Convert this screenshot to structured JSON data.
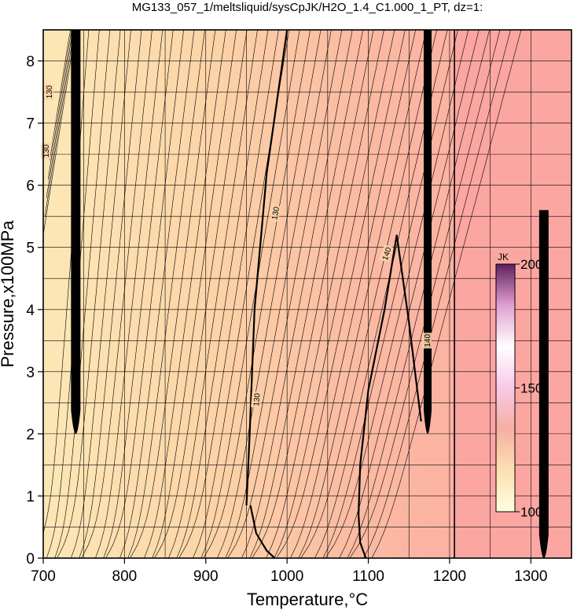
{
  "chart_data": {
    "type": "heatmap",
    "title": "MG133_057_1/meltsliquid/sysCpJK/H2O_1.4_C1.000_1_PT, dz=1:",
    "xlabel": "Temperature,°C",
    "ylabel": "Pressure,x100MPa",
    "xlim": [
      700,
      1350
    ],
    "ylim": [
      0,
      8.5
    ],
    "x_ticks": [
      700,
      800,
      900,
      1000,
      1100,
      1200,
      1300
    ],
    "y_ticks": [
      0,
      1,
      2,
      3,
      4,
      5,
      6,
      7,
      8
    ],
    "x_grid_step": 50,
    "y_grid_step": 0.5,
    "grid": true,
    "colors": {
      "low": "#fde5b4",
      "mid": "#fbc7a6",
      "high": "#fca8a3",
      "line": "#000000"
    },
    "colorbar": {
      "unit": "JK",
      "ticks": [
        100,
        150,
        200
      ],
      "range": [
        100,
        200
      ],
      "stops": [
        "#ffffe0",
        "#fce0b0",
        "#f6b0a0",
        "#f8c8e8",
        "#ffffff",
        "#e0a0d0",
        "#602060"
      ]
    },
    "contour_labels": [
      {
        "text": "130",
        "x": 985,
        "y": 5.55,
        "angle": -80
      },
      {
        "text": "130",
        "x": 962,
        "y": 2.55,
        "angle": -85
      },
      {
        "text": "140",
        "x": 1122,
        "y": 4.9,
        "angle": -70
      },
      {
        "text": "140",
        "x": 1172,
        "y": 3.5,
        "angle": -90
      },
      {
        "text": "130",
        "x": 703,
        "y": 6.55,
        "angle": -90
      },
      {
        "text": "130",
        "x": 707,
        "y": 7.5,
        "angle": -90
      }
    ],
    "contours": [
      {
        "name": "",
        "width": 2.2,
        "x": [
          950,
          954,
          960,
          975,
          1000
        ],
        "y": [
          0.85,
          2.0,
          4.0,
          6.2,
          8.5
        ]
      },
      {
        "name": "",
        "width": 2.2,
        "x": [
          955,
          962,
          975,
          985
        ],
        "y": [
          0.85,
          0.4,
          0.12,
          0.0
        ]
      },
      {
        "name": "",
        "width": 2.2,
        "x": [
          1097,
          1090,
          1088,
          1090,
          1100,
          1120,
          1135,
          1150,
          1165
        ],
        "y": [
          0.0,
          0.25,
          0.7,
          1.5,
          2.7,
          4.0,
          5.2,
          3.8,
          2.2
        ]
      },
      {
        "name": "",
        "width": 1.6,
        "x": [
          1206,
          1206
        ],
        "y": [
          0.0,
          8.5
        ]
      }
    ],
    "filled_bands": [
      {
        "x_center": 740,
        "y_min": 2.0,
        "y_max": 8.5,
        "half_width": 6
      },
      {
        "x_center": 1173,
        "y_min": 2.0,
        "y_max": 8.5,
        "half_width": 5
      },
      {
        "x_center": 1316,
        "y_min": 0.0,
        "y_max": 5.6,
        "half_width": 6
      }
    ]
  }
}
